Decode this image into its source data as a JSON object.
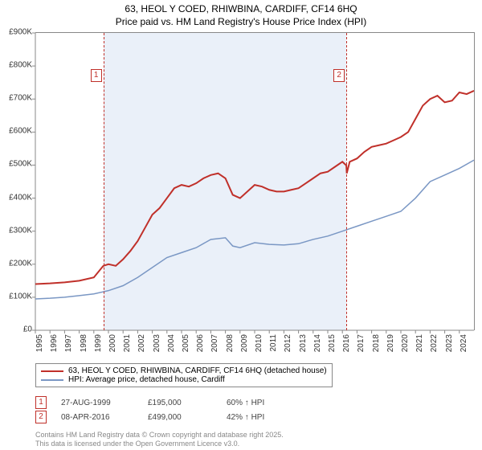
{
  "title_line1": "63, HEOL Y COED, RHIWBINA, CARDIFF, CF14 6HQ",
  "title_line2": "Price paid vs. HM Land Registry's House Price Index (HPI)",
  "chart": {
    "type": "line",
    "background_color": "#ffffff",
    "shade_color": "#eaf0f9",
    "axis_color": "#888888",
    "xlim": [
      1995,
      2025
    ],
    "ylim": [
      0,
      900000
    ],
    "y_ticks": [
      0,
      100000,
      200000,
      300000,
      400000,
      500000,
      600000,
      700000,
      800000,
      900000
    ],
    "y_tick_labels": [
      "£0",
      "£100K",
      "£200K",
      "£300K",
      "£400K",
      "£500K",
      "£600K",
      "£700K",
      "£800K",
      "£900K"
    ],
    "x_ticks": [
      1995,
      1996,
      1997,
      1998,
      1999,
      2000,
      2001,
      2002,
      2003,
      2004,
      2005,
      2006,
      2007,
      2008,
      2009,
      2010,
      2011,
      2012,
      2013,
      2014,
      2015,
      2016,
      2017,
      2018,
      2019,
      2020,
      2021,
      2022,
      2023,
      2024
    ],
    "shade_start": 1999.65,
    "shade_end": 2016.27,
    "markers": [
      {
        "num": "1",
        "x": 1999.65,
        "box_top": 45
      },
      {
        "num": "2",
        "x": 2016.27,
        "box_top": 45
      }
    ],
    "series": [
      {
        "name": "price_paid",
        "color": "#c0302a",
        "line_width": 2,
        "legend": "63, HEOL Y COED, RHIWBINA, CARDIFF, CF14 6HQ (detached house)",
        "points": [
          [
            1995,
            140000
          ],
          [
            1996,
            142000
          ],
          [
            1997,
            145000
          ],
          [
            1998,
            150000
          ],
          [
            1999,
            160000
          ],
          [
            1999.65,
            195000
          ],
          [
            2000,
            200000
          ],
          [
            2000.5,
            195000
          ],
          [
            2001,
            215000
          ],
          [
            2001.5,
            240000
          ],
          [
            2002,
            270000
          ],
          [
            2002.5,
            310000
          ],
          [
            2003,
            350000
          ],
          [
            2003.5,
            370000
          ],
          [
            2004,
            400000
          ],
          [
            2004.5,
            430000
          ],
          [
            2005,
            440000
          ],
          [
            2005.5,
            435000
          ],
          [
            2006,
            445000
          ],
          [
            2006.5,
            460000
          ],
          [
            2007,
            470000
          ],
          [
            2007.5,
            475000
          ],
          [
            2008,
            460000
          ],
          [
            2008.5,
            410000
          ],
          [
            2009,
            400000
          ],
          [
            2009.5,
            420000
          ],
          [
            2010,
            440000
          ],
          [
            2010.5,
            435000
          ],
          [
            2011,
            425000
          ],
          [
            2011.5,
            420000
          ],
          [
            2012,
            420000
          ],
          [
            2012.5,
            425000
          ],
          [
            2013,
            430000
          ],
          [
            2013.5,
            445000
          ],
          [
            2014,
            460000
          ],
          [
            2014.5,
            475000
          ],
          [
            2015,
            480000
          ],
          [
            2015.5,
            495000
          ],
          [
            2016,
            510000
          ],
          [
            2016.27,
            499000
          ],
          [
            2016.3,
            475000
          ],
          [
            2016.5,
            510000
          ],
          [
            2017,
            520000
          ],
          [
            2017.5,
            540000
          ],
          [
            2018,
            555000
          ],
          [
            2018.5,
            560000
          ],
          [
            2019,
            565000
          ],
          [
            2019.5,
            575000
          ],
          [
            2020,
            585000
          ],
          [
            2020.5,
            600000
          ],
          [
            2021,
            640000
          ],
          [
            2021.5,
            680000
          ],
          [
            2022,
            700000
          ],
          [
            2022.5,
            710000
          ],
          [
            2023,
            690000
          ],
          [
            2023.5,
            695000
          ],
          [
            2024,
            720000
          ],
          [
            2024.5,
            715000
          ],
          [
            2025,
            725000
          ]
        ]
      },
      {
        "name": "hpi",
        "color": "#7a97c4",
        "line_width": 1.5,
        "legend": "HPI: Average price, detached house, Cardiff",
        "points": [
          [
            1995,
            95000
          ],
          [
            1996,
            97000
          ],
          [
            1997,
            100000
          ],
          [
            1998,
            105000
          ],
          [
            1999,
            110000
          ],
          [
            2000,
            120000
          ],
          [
            2001,
            135000
          ],
          [
            2002,
            160000
          ],
          [
            2003,
            190000
          ],
          [
            2004,
            220000
          ],
          [
            2005,
            235000
          ],
          [
            2006,
            250000
          ],
          [
            2007,
            275000
          ],
          [
            2008,
            280000
          ],
          [
            2008.5,
            255000
          ],
          [
            2009,
            250000
          ],
          [
            2010,
            265000
          ],
          [
            2011,
            260000
          ],
          [
            2012,
            258000
          ],
          [
            2013,
            262000
          ],
          [
            2014,
            275000
          ],
          [
            2015,
            285000
          ],
          [
            2016,
            300000
          ],
          [
            2017,
            315000
          ],
          [
            2018,
            330000
          ],
          [
            2019,
            345000
          ],
          [
            2020,
            360000
          ],
          [
            2021,
            400000
          ],
          [
            2022,
            450000
          ],
          [
            2023,
            470000
          ],
          [
            2024,
            490000
          ],
          [
            2025,
            515000
          ]
        ]
      }
    ]
  },
  "transactions": [
    {
      "num": "1",
      "date": "27-AUG-1999",
      "price": "£195,000",
      "pct": "60% ↑ HPI"
    },
    {
      "num": "2",
      "date": "08-APR-2016",
      "price": "£499,000",
      "pct": "42% ↑ HPI"
    }
  ],
  "footer_line1": "Contains HM Land Registry data © Crown copyright and database right 2025.",
  "footer_line2": "This data is licensed under the Open Government Licence v3.0."
}
